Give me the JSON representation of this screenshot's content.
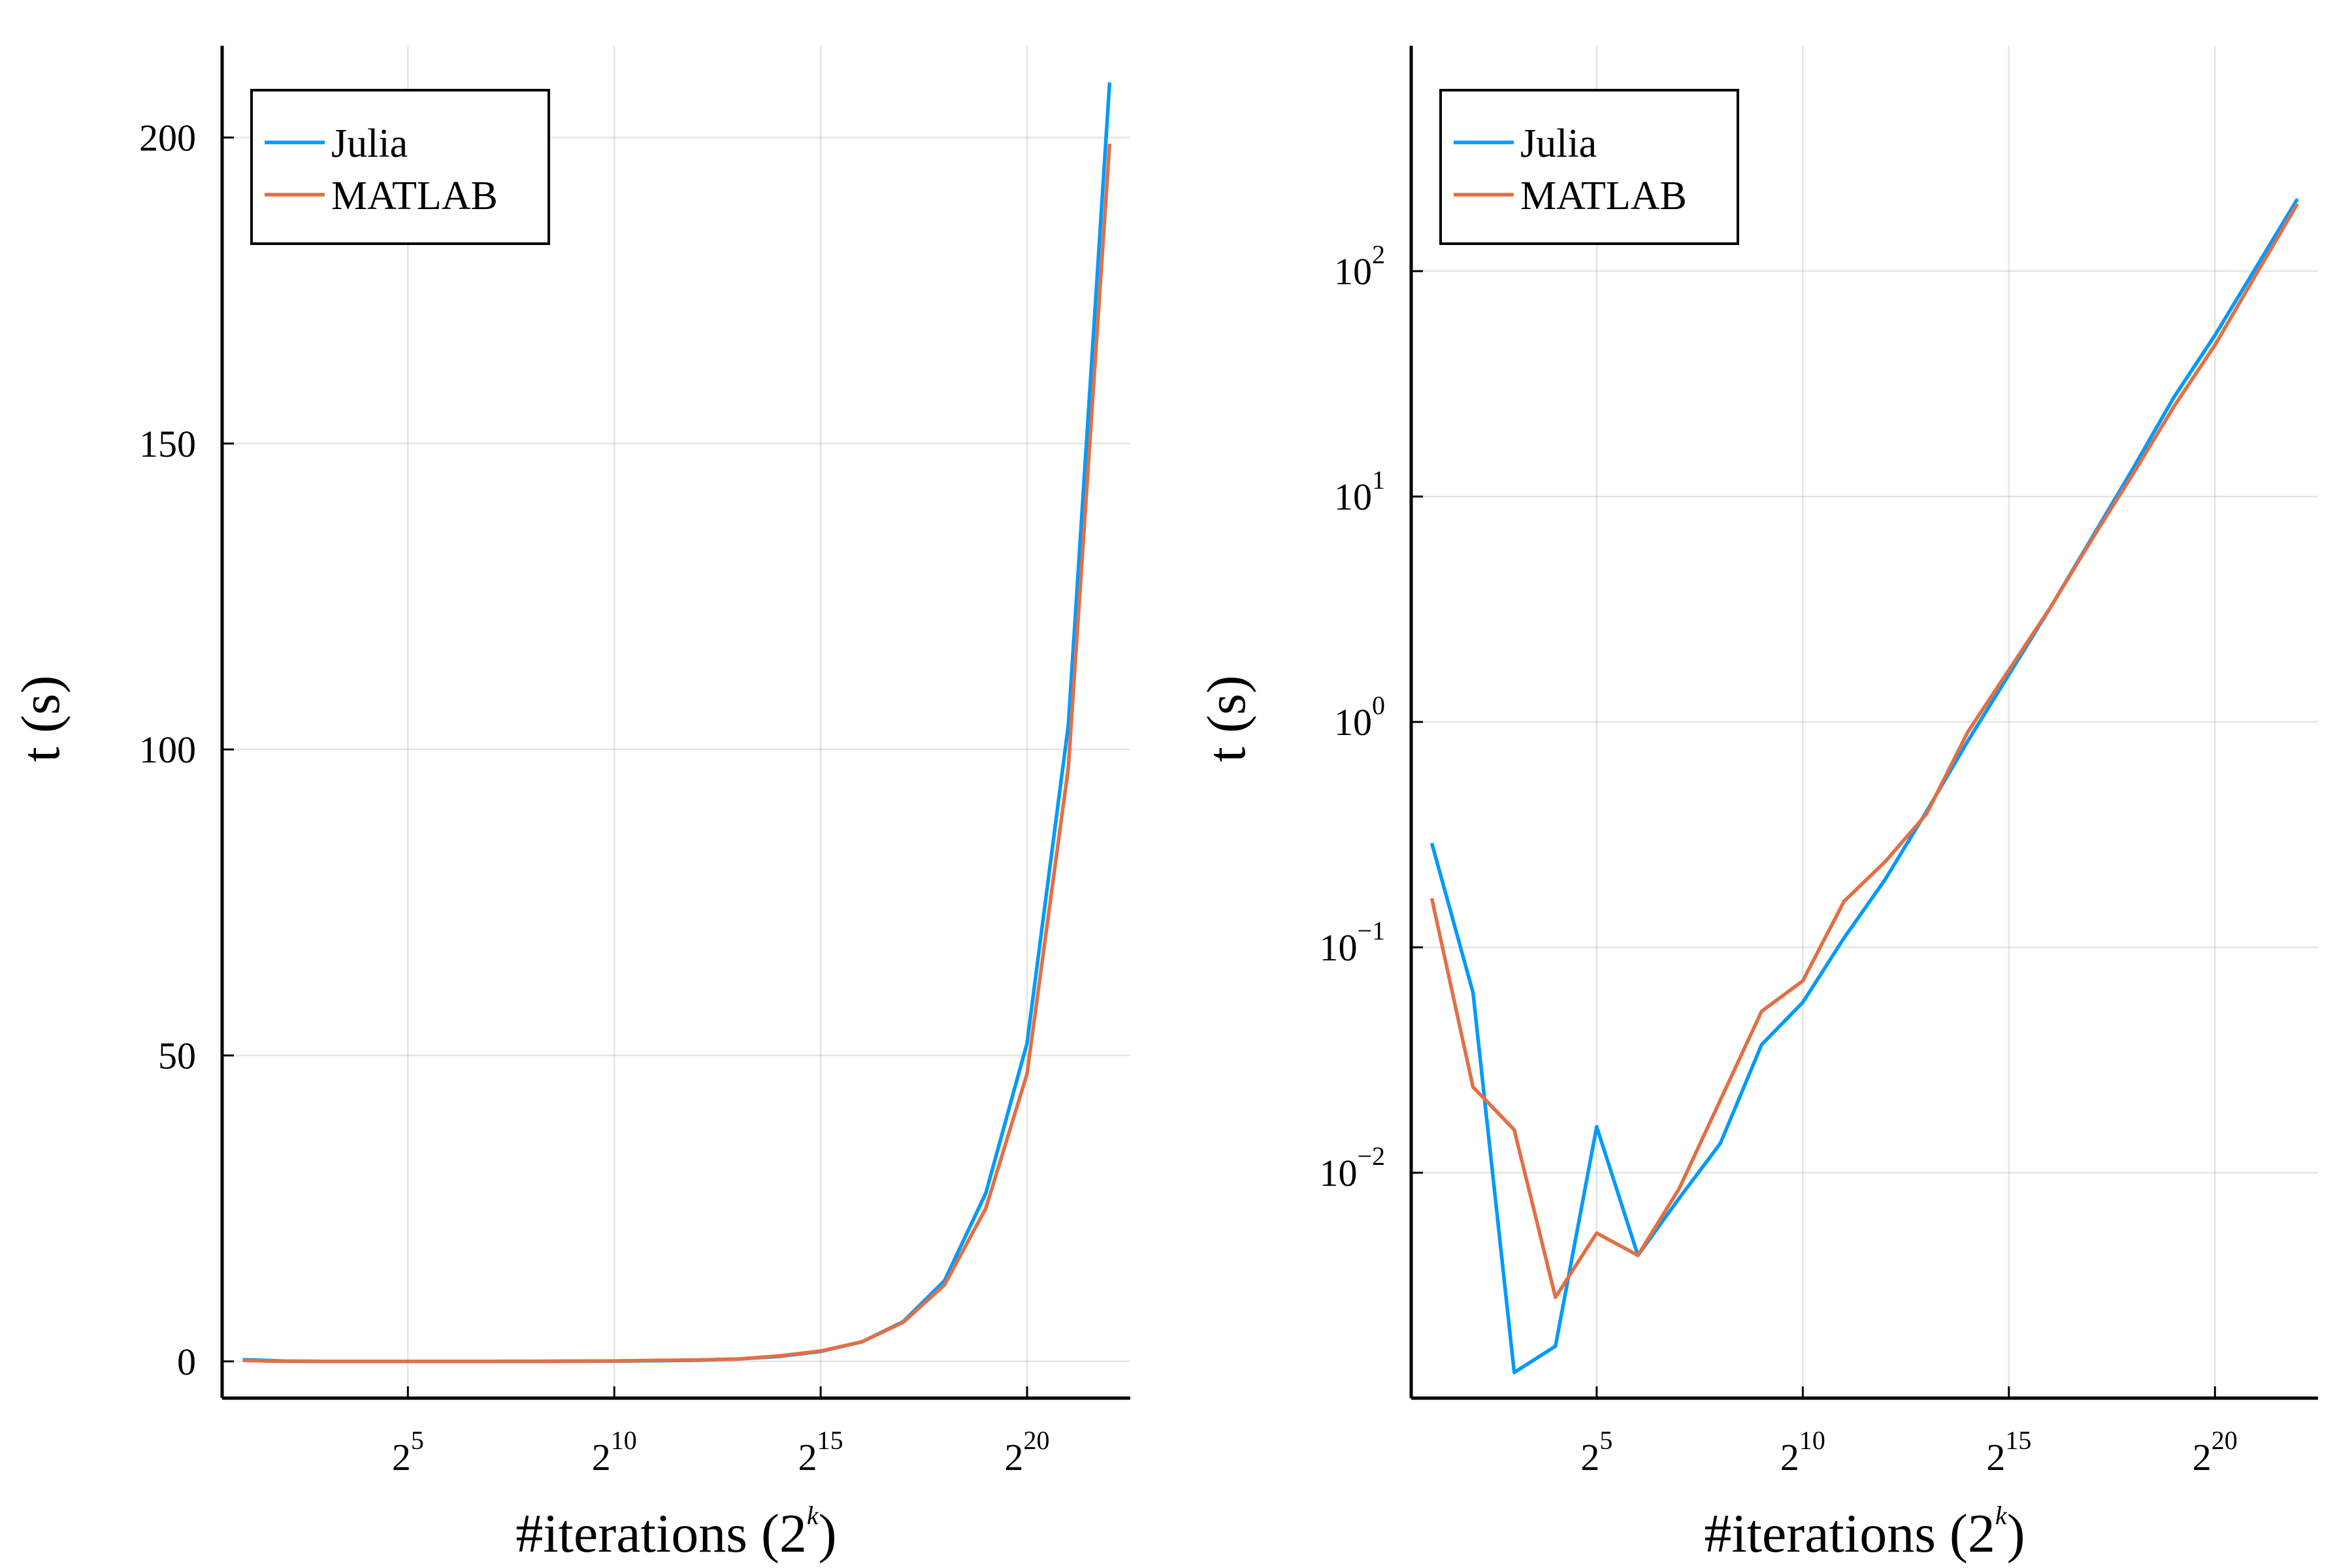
{
  "colors": {
    "Julia": "#009AFA",
    "MATLAB": "#E26F46"
  },
  "chart_data": [
    {
      "type": "line",
      "xlabel": "#iterations (2^k)",
      "xlabel_base": "#iterations (2",
      "xlabel_exp": "k",
      "xlabel_close": ")",
      "ylabel": "t (s)",
      "yscale": "linear",
      "xlim": [
        0.5,
        22.5
      ],
      "ylim": [
        -6,
        215
      ],
      "grid": true,
      "legend_position": "top-left",
      "x_ticks": [
        {
          "value": 5,
          "base": "2",
          "exp": "5"
        },
        {
          "value": 10,
          "base": "2",
          "exp": "10"
        },
        {
          "value": 15,
          "base": "2",
          "exp": "15"
        },
        {
          "value": 20,
          "base": "2",
          "exp": "20"
        }
      ],
      "y_ticks": [
        {
          "value": 0,
          "label": "0"
        },
        {
          "value": 50,
          "label": "50"
        },
        {
          "value": 100,
          "label": "100"
        },
        {
          "value": 150,
          "label": "150"
        },
        {
          "value": 200,
          "label": "200"
        }
      ],
      "x": [
        1,
        2,
        3,
        4,
        5,
        6,
        7,
        8,
        9,
        10,
        11,
        12,
        13,
        14,
        15,
        16,
        17,
        18,
        19,
        20,
        21,
        22
      ],
      "series": [
        {
          "name": "Julia",
          "values": [
            0.29,
            0.063,
            0.0013,
            0.0017,
            0.016,
            0.0043,
            0.0077,
            0.0135,
            0.037,
            0.057,
            0.11,
            0.2,
            0.4,
            0.82,
            1.62,
            3.2,
            6.5,
            13.2,
            27.5,
            52,
            104,
            209
          ]
        },
        {
          "name": "MATLAB",
          "values": [
            0.165,
            0.024,
            0.0155,
            0.0028,
            0.0054,
            0.0043,
            0.0085,
            0.021,
            0.052,
            0.071,
            0.16,
            0.24,
            0.39,
            0.9,
            1.7,
            3.2,
            6.4,
            12.5,
            25,
            47,
            97,
            199
          ]
        }
      ]
    },
    {
      "type": "line",
      "xlabel": "#iterations (2^k)",
      "xlabel_base": "#iterations (2",
      "xlabel_exp": "k",
      "xlabel_close": ")",
      "ylabel": "t (s)",
      "yscale": "log",
      "xlim": [
        0.5,
        22.5
      ],
      "ylim": [
        0.001,
        1000
      ],
      "grid": true,
      "legend_position": "top-left",
      "x_ticks": [
        {
          "value": 5,
          "base": "2",
          "exp": "5"
        },
        {
          "value": 10,
          "base": "2",
          "exp": "10"
        },
        {
          "value": 15,
          "base": "2",
          "exp": "15"
        },
        {
          "value": 20,
          "base": "2",
          "exp": "20"
        }
      ],
      "y_ticks": [
        {
          "value": 0.01,
          "base": "10",
          "exp": "−2"
        },
        {
          "value": 0.1,
          "base": "10",
          "exp": "−1"
        },
        {
          "value": 1,
          "base": "10",
          "exp": "0"
        },
        {
          "value": 10,
          "base": "10",
          "exp": "1"
        },
        {
          "value": 100,
          "base": "10",
          "exp": "2"
        }
      ],
      "x": [
        1,
        2,
        3,
        4,
        5,
        6,
        7,
        8,
        9,
        10,
        11,
        12,
        13,
        14,
        15,
        16,
        17,
        18,
        19,
        20,
        21,
        22
      ],
      "series": [
        {
          "name": "Julia",
          "values": [
            0.29,
            0.063,
            0.0013,
            0.0017,
            0.016,
            0.0043,
            0.0077,
            0.0135,
            0.037,
            0.057,
            0.11,
            0.2,
            0.4,
            0.82,
            1.62,
            3.2,
            6.5,
            13.2,
            27.5,
            52,
            104,
            209
          ]
        },
        {
          "name": "MATLAB",
          "values": [
            0.165,
            0.024,
            0.0155,
            0.0028,
            0.0054,
            0.0043,
            0.0085,
            0.021,
            0.052,
            0.071,
            0.16,
            0.24,
            0.39,
            0.9,
            1.7,
            3.2,
            6.4,
            12.5,
            25,
            47,
            97,
            199
          ]
        }
      ]
    }
  ]
}
